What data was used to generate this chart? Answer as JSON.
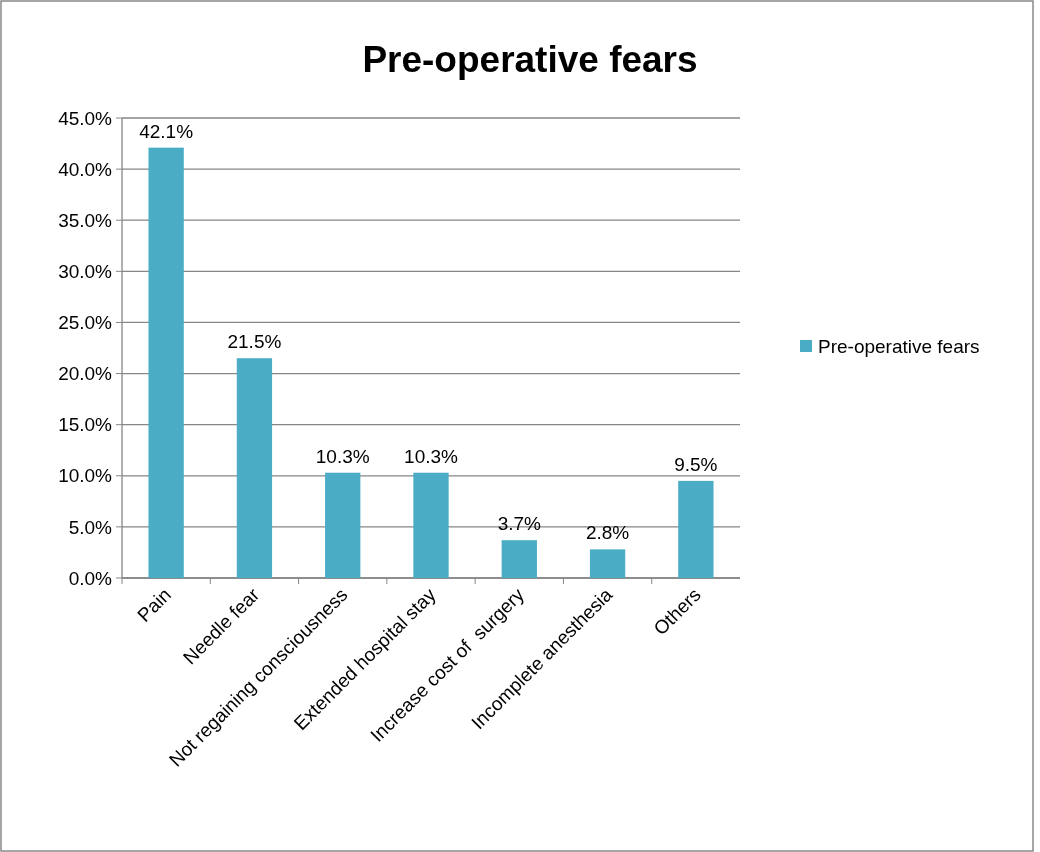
{
  "chart_data": {
    "type": "bar",
    "title": "Pre-operative fears",
    "categories": [
      "Pain",
      "Needle fear",
      "Not regaining consciousness",
      "Extended hospital stay",
      "Increase cost of  surgery",
      "Incomplete anesthesia",
      "Others"
    ],
    "series": [
      {
        "name": "Pre-operative fears",
        "color": "#4bacc6",
        "values": [
          42.1,
          21.5,
          10.3,
          10.3,
          3.7,
          2.8,
          9.5
        ],
        "value_labels": [
          "42.1%",
          "21.5%",
          "10.3%",
          "10.3%",
          "3.7%",
          "2.8%",
          "9.5%"
        ]
      }
    ],
    "ylim": [
      0,
      45
    ],
    "yticks": [
      {
        "value": 0,
        "label": "0.0%"
      },
      {
        "value": 5,
        "label": "5.0%"
      },
      {
        "value": 10,
        "label": "10.0%"
      },
      {
        "value": 15,
        "label": "15.0%"
      },
      {
        "value": 20,
        "label": "20.0%"
      },
      {
        "value": 25,
        "label": "25.0%"
      },
      {
        "value": 30,
        "label": "30.0%"
      },
      {
        "value": 35,
        "label": "35.0%"
      },
      {
        "value": 40,
        "label": "40.0%"
      },
      {
        "value": 45,
        "label": "45.0%"
      }
    ],
    "grid": "y",
    "legend": "right"
  }
}
